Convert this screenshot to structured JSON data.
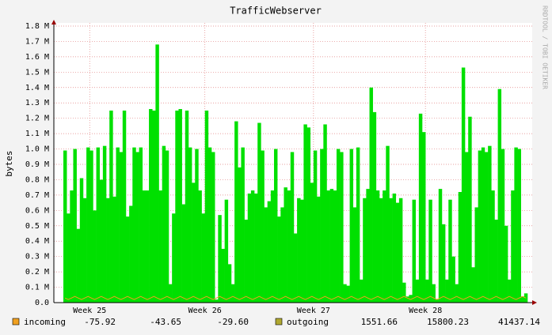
{
  "chart_data": {
    "type": "bar",
    "title": "TrafficWebserver",
    "y_label": "bytes",
    "watermark": "RRDTOOL / TOBI OETIKER",
    "ylim": [
      0,
      1.8
    ],
    "yticks": [
      {
        "value": 0,
        "label": "0.0"
      },
      {
        "value": 0.1,
        "label": "0.1 M"
      },
      {
        "value": 0.2,
        "label": "0.2 M"
      },
      {
        "value": 0.3,
        "label": "0.3 M"
      },
      {
        "value": 0.4,
        "label": "0.4 M"
      },
      {
        "value": 0.5,
        "label": "0.5 M"
      },
      {
        "value": 0.6,
        "label": "0.6 M"
      },
      {
        "value": 0.7,
        "label": "0.7 M"
      },
      {
        "value": 0.8,
        "label": "0.8 M"
      },
      {
        "value": 0.9,
        "label": "0.9 M"
      },
      {
        "value": 1.0,
        "label": "1.0 M"
      },
      {
        "value": 1.1,
        "label": "1.1 M"
      },
      {
        "value": 1.2,
        "label": "1.2 M"
      },
      {
        "value": 1.3,
        "label": "1.3 M"
      },
      {
        "value": 1.4,
        "label": "1.4 M"
      },
      {
        "value": 1.5,
        "label": "1.5 M"
      },
      {
        "value": 1.6,
        "label": "1.6 M"
      },
      {
        "value": 1.7,
        "label": "1.7 M"
      },
      {
        "value": 1.8,
        "label": "1.8 M"
      }
    ],
    "xlim": [
      0,
      141
    ],
    "xticks": [
      {
        "value": 8,
        "label": "Week 25"
      },
      {
        "value": 43,
        "label": "Week 26"
      },
      {
        "value": 76,
        "label": "Week 27"
      },
      {
        "value": 110,
        "label": "Week 28"
      }
    ],
    "grid": true,
    "series": [
      {
        "name": "incoming",
        "color": "#f0a020",
        "kind": "line",
        "stats": [
          "-75.92",
          "-43.65",
          "-29.60"
        ],
        "values": [
          0.03,
          0.02,
          0.03,
          0.04,
          0.03,
          0.02,
          0.03,
          0.04,
          0.03,
          0.02,
          0.03,
          0.04,
          0.03,
          0.02,
          0.03,
          0.04,
          0.03,
          0.02,
          0.03,
          0.04,
          0.03,
          0.02,
          0.03,
          0.04,
          0.03,
          0.02,
          0.03,
          0.04,
          0.03,
          0.02,
          0.03,
          0.04,
          0.03,
          0.02,
          0.03,
          0.04,
          0.03,
          0.02,
          0.03,
          0.04,
          0.03,
          0.02,
          0.03,
          0.04,
          0.03,
          0.02,
          0.03,
          0.04,
          0.03,
          0.02,
          0.03,
          0.04,
          0.03,
          0.02,
          0.03,
          0.04,
          0.03,
          0.02,
          0.03,
          0.04,
          0.03,
          0.02,
          0.03,
          0.04,
          0.03,
          0.02,
          0.03,
          0.04,
          0.03,
          0.02,
          0.03,
          0.04,
          0.03,
          0.02,
          0.03,
          0.04,
          0.03,
          0.02,
          0.03,
          0.04,
          0.03,
          0.02,
          0.03,
          0.04,
          0.03,
          0.02,
          0.03,
          0.04,
          0.03,
          0.02,
          0.03,
          0.04,
          0.03,
          0.02,
          0.03,
          0.04,
          0.03,
          0.02,
          0.03,
          0.04,
          0.03,
          0.02,
          0.03,
          0.04,
          0.03,
          0.02,
          0.03,
          0.04,
          0.03,
          0.02,
          0.03,
          0.04,
          0.03,
          0.02,
          0.03,
          0.04,
          0.03,
          0.02,
          0.03,
          0.04,
          0.03,
          0.02,
          0.03,
          0.04,
          0.03,
          0.02,
          0.03,
          0.04,
          0.03,
          0.02,
          0.03,
          0.04,
          0.03,
          0.02,
          0.03,
          0.04,
          0.03,
          0.02,
          0.03,
          0.04,
          0.03
        ]
      },
      {
        "name": "outgoing",
        "color": "#00e000",
        "legend_color": "#b0a830",
        "kind": "bar",
        "stats": [
          "1551.66",
          "15800.23",
          "41437.14"
        ],
        "values": [
          0.99,
          0.58,
          0.73,
          1.0,
          0.48,
          0.81,
          0.68,
          1.01,
          0.99,
          0.6,
          1.01,
          0.8,
          1.02,
          0.68,
          1.25,
          0.69,
          1.01,
          0.98,
          1.25,
          0.56,
          0.63,
          1.01,
          0.98,
          1.01,
          0.73,
          0.73,
          1.26,
          1.25,
          1.68,
          0.73,
          1.02,
          0.99,
          0.12,
          0.58,
          1.25,
          1.26,
          0.64,
          1.25,
          1.01,
          0.78,
          1.0,
          0.73,
          0.58,
          1.25,
          1.01,
          0.98,
          0.02,
          0.57,
          0.35,
          0.67,
          0.25,
          0.12,
          1.18,
          0.88,
          1.01,
          0.54,
          0.71,
          0.73,
          0.71,
          1.17,
          0.99,
          0.62,
          0.66,
          0.73,
          1.0,
          0.56,
          0.62,
          0.75,
          0.73,
          0.98,
          0.45,
          0.68,
          0.67,
          1.16,
          1.14,
          0.78,
          0.99,
          0.69,
          1.0,
          1.16,
          0.73,
          0.74,
          0.73,
          1.0,
          0.98,
          0.12,
          0.11,
          1.0,
          0.62,
          1.01,
          0.15,
          0.68,
          0.74,
          1.4,
          1.24,
          0.73,
          0.68,
          0.73,
          1.02,
          0.68,
          0.71,
          0.65,
          0.68,
          0.13,
          0.04,
          0.05,
          0.67,
          0.15,
          1.23,
          1.11,
          0.15,
          0.67,
          0.12,
          0.02,
          0.74,
          0.51,
          0.15,
          0.67,
          0.3,
          0.12,
          0.72,
          1.53,
          0.98,
          1.21,
          0.23,
          0.62,
          0.99,
          1.01,
          0.98,
          1.02,
          0.73,
          0.54,
          1.39,
          1.0,
          0.5,
          0.15,
          0.73,
          1.01,
          1.0,
          0.04,
          0.06
        ]
      }
    ]
  }
}
